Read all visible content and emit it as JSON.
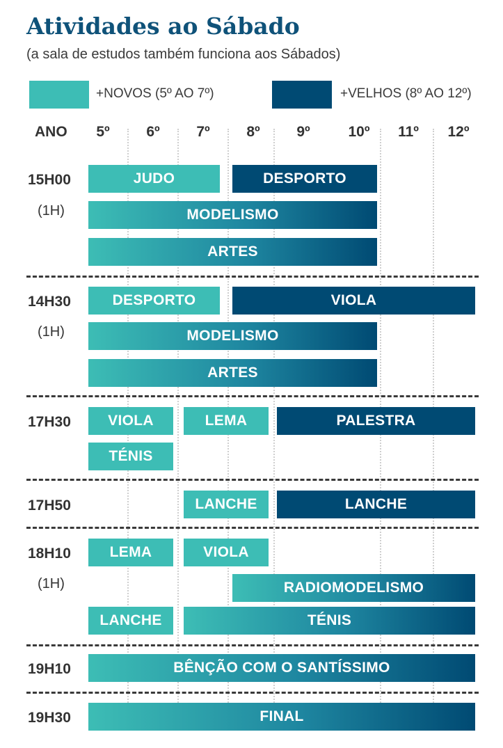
{
  "title": "Atividades ao Sábado",
  "subtitle": "(a sala de estudos também funciona aos Sábados)",
  "legend": {
    "young": {
      "label": "+NOVOS (5º AO 7º)",
      "color": "#3dbdb5"
    },
    "old": {
      "label": "+VELHOS (8º AO 12º)",
      "color": "#004a73"
    }
  },
  "header": {
    "year_label": "ANO",
    "grades": [
      "5º",
      "6º",
      "7º",
      "8º",
      "9º",
      "10º",
      "11º",
      "12º"
    ]
  },
  "schedule": [
    {
      "time": "15H00",
      "duration": "(1H)",
      "activities": [
        "JUDO",
        "DESPORTO",
        "MODELISMO",
        "ARTES"
      ]
    },
    {
      "time": "14H30",
      "duration": "(1H)",
      "activities": [
        "DESPORTO",
        "VIOLA",
        "MODELISMO",
        "ARTES"
      ]
    },
    {
      "time": "17H30",
      "activities": [
        "VIOLA",
        "LEMA",
        "PALESTRA",
        "TÉNIS"
      ]
    },
    {
      "time": "17H50",
      "activities": [
        "LANCHE",
        "LANCHE"
      ]
    },
    {
      "time": "18H10",
      "duration": "(1H)",
      "activities": [
        "LEMA",
        "VIOLA",
        "RADIOMODELISMO",
        "LANCHE",
        "TÉNIS"
      ]
    },
    {
      "time": "19H10",
      "activities": [
        "BÊNÇÃO COM O SANTÍSSIMO"
      ]
    },
    {
      "time": "19H30",
      "activities": [
        "FINAL"
      ]
    }
  ]
}
